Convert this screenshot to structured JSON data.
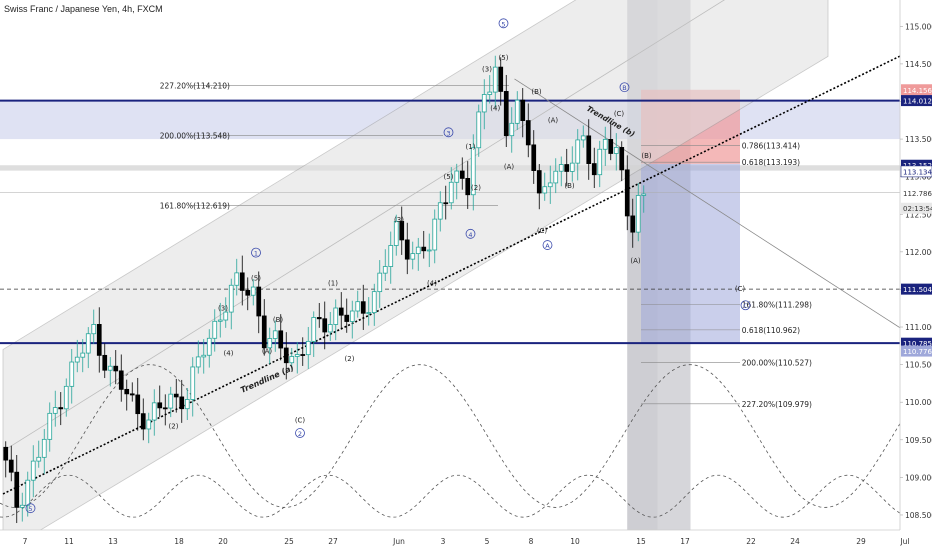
{
  "header": {
    "title": "Swiss Franc / Japanese Yen, 4h, FXCM"
  },
  "chart_data": {
    "type": "candlestick",
    "ylim": [
      108.3,
      115.35
    ],
    "x_ticks": [
      {
        "label": "7",
        "bar": 4
      },
      {
        "label": "11",
        "bar": 12
      },
      {
        "label": "13",
        "bar": 20
      },
      {
        "label": "18",
        "bar": 32
      },
      {
        "label": "20",
        "bar": 40
      },
      {
        "label": "25",
        "bar": 52
      },
      {
        "label": "27",
        "bar": 60
      },
      {
        "label": "Jun",
        "bar": 72
      },
      {
        "label": "3",
        "bar": 80
      },
      {
        "label": "5",
        "bar": 88
      },
      {
        "label": "8",
        "bar": 96
      },
      {
        "label": "10",
        "bar": 104
      },
      {
        "label": "15",
        "bar": 116
      },
      {
        "label": "17",
        "bar": 124
      },
      {
        "label": "22",
        "bar": 136
      },
      {
        "label": "24",
        "bar": 144
      },
      {
        "label": "29",
        "bar": 156
      },
      {
        "label": "Jul",
        "bar": 164
      }
    ],
    "y_ticks": [
      "115.000",
      "114.500",
      "114.000",
      "113.500",
      "113.000",
      "112.500",
      "112.000",
      "111.500",
      "111.000",
      "110.500",
      "110.000",
      "109.500",
      "109.000",
      "108.500"
    ],
    "price_labels": [
      {
        "value": "114.156",
        "price": 114.156,
        "bg": "#ef9a9a",
        "fg": "#ffffff"
      },
      {
        "value": "114.012",
        "price": 114.012,
        "bg": "#1a237e",
        "fg": "#ffffff"
      },
      {
        "value": "113.152",
        "price": 113.152,
        "bg": "#1a237e",
        "fg": "#ffffff"
      },
      {
        "value": "113.134",
        "price": 113.07,
        "bg": "#ffffff",
        "fg": "#1a237e"
      },
      {
        "value": "112.786",
        "price": 112.786,
        "bg": "#ffffff",
        "fg": "#333333"
      },
      {
        "value": "02:13:54",
        "price": 112.58,
        "bg": "#e8e8e8",
        "fg": "#333333"
      },
      {
        "value": "111.504",
        "price": 111.504,
        "bg": "#1a237e",
        "fg": "#ffffff"
      },
      {
        "value": "110.785",
        "price": 110.785,
        "bg": "#1a237e",
        "fg": "#ffffff"
      },
      {
        "value": "110.776",
        "price": 110.68,
        "bg": "#9fa8da",
        "fg": "#ffffff"
      }
    ],
    "fib_labels": [
      {
        "text": "227.20%(114.210)",
        "price": 114.21
      },
      {
        "text": "200.00%(113.548)",
        "price": 113.548
      },
      {
        "text": "161.80%(112.619)",
        "price": 112.619
      },
      {
        "text": "0.786(113.414)",
        "price": 113.414
      },
      {
        "text": "0.618(113.193)",
        "price": 113.193
      },
      {
        "text": "161.80%(111.298)",
        "price": 111.298
      },
      {
        "text": "0.618(110.962)",
        "price": 110.962
      },
      {
        "text": "200.00%(110.527)",
        "price": 110.527
      },
      {
        "text": "227.20%(109.979)",
        "price": 109.979
      }
    ],
    "trendline_labels": [
      "Trendline (a)",
      "Trendline (b)"
    ],
    "wave_labels": [
      {
        "text": "5",
        "bar": 5,
        "price": 108.55,
        "circle": true
      },
      {
        "text": "1",
        "bar": 46,
        "price": 111.95,
        "circle": true
      },
      {
        "text": "2",
        "bar": 54,
        "price": 109.55,
        "circle": true
      },
      {
        "text": "3",
        "bar": 81,
        "price": 113.55,
        "circle": true
      },
      {
        "text": "4",
        "bar": 85,
        "price": 112.2,
        "circle": true
      },
      {
        "text": "5",
        "bar": 91,
        "price": 115.0,
        "circle": true
      },
      {
        "text": "A",
        "bar": 99,
        "price": 112.05,
        "circle": true
      },
      {
        "text": "B",
        "bar": 113,
        "price": 114.15,
        "circle": true
      },
      {
        "text": "C",
        "bar": 135,
        "price": 111.25,
        "circle": true
      },
      {
        "text": "(5)",
        "bar": 46,
        "price": 111.62
      },
      {
        "text": "(3)",
        "bar": 40,
        "price": 111.22
      },
      {
        "text": "(4)",
        "bar": 41,
        "price": 110.62
      },
      {
        "text": "(B)",
        "bar": 50,
        "price": 111.07
      },
      {
        "text": "(A)",
        "bar": 48,
        "price": 110.65
      },
      {
        "text": "(C)",
        "bar": 54,
        "price": 109.73
      },
      {
        "text": "(2)",
        "bar": 31,
        "price": 109.65
      },
      {
        "text": "(1)",
        "bar": 60,
        "price": 111.55
      },
      {
        "text": "(2)",
        "bar": 63,
        "price": 110.55
      },
      {
        "text": "(3)",
        "bar": 72,
        "price": 112.4
      },
      {
        "text": "(4)",
        "bar": 78,
        "price": 111.55
      },
      {
        "text": "(5)",
        "bar": 81,
        "price": 112.97
      },
      {
        "text": "(1)",
        "bar": 85,
        "price": 113.37
      },
      {
        "text": "(2)",
        "bar": 86,
        "price": 112.82
      },
      {
        "text": "(3)",
        "bar": 88,
        "price": 114.4
      },
      {
        "text": "(4)",
        "bar": 89.5,
        "price": 113.88
      },
      {
        "text": "(5)",
        "bar": 91,
        "price": 114.55
      },
      {
        "text": "(B)",
        "bar": 97,
        "price": 114.1
      },
      {
        "text": "(A)",
        "bar": 92,
        "price": 113.1
      },
      {
        "text": "(A)",
        "bar": 100,
        "price": 113.72
      },
      {
        "text": "(B)",
        "bar": 103,
        "price": 112.85
      },
      {
        "text": "(C)",
        "bar": 98,
        "price": 112.25
      },
      {
        "text": "(C)",
        "bar": 112,
        "price": 113.81
      },
      {
        "text": "(B)",
        "bar": 117,
        "price": 113.25
      },
      {
        "text": "(A)",
        "bar": 115,
        "price": 111.85
      },
      {
        "text": "(C)",
        "bar": 134,
        "price": 111.48
      }
    ]
  },
  "colors": {
    "up": "#26a69a",
    "down": "#000000",
    "resistance_band": "#c5cae9",
    "support_line": "#1a237e",
    "target_box": "#ef9a9a",
    "projection_box": "#9fa8da",
    "time_zone": "#9e9e9e"
  }
}
